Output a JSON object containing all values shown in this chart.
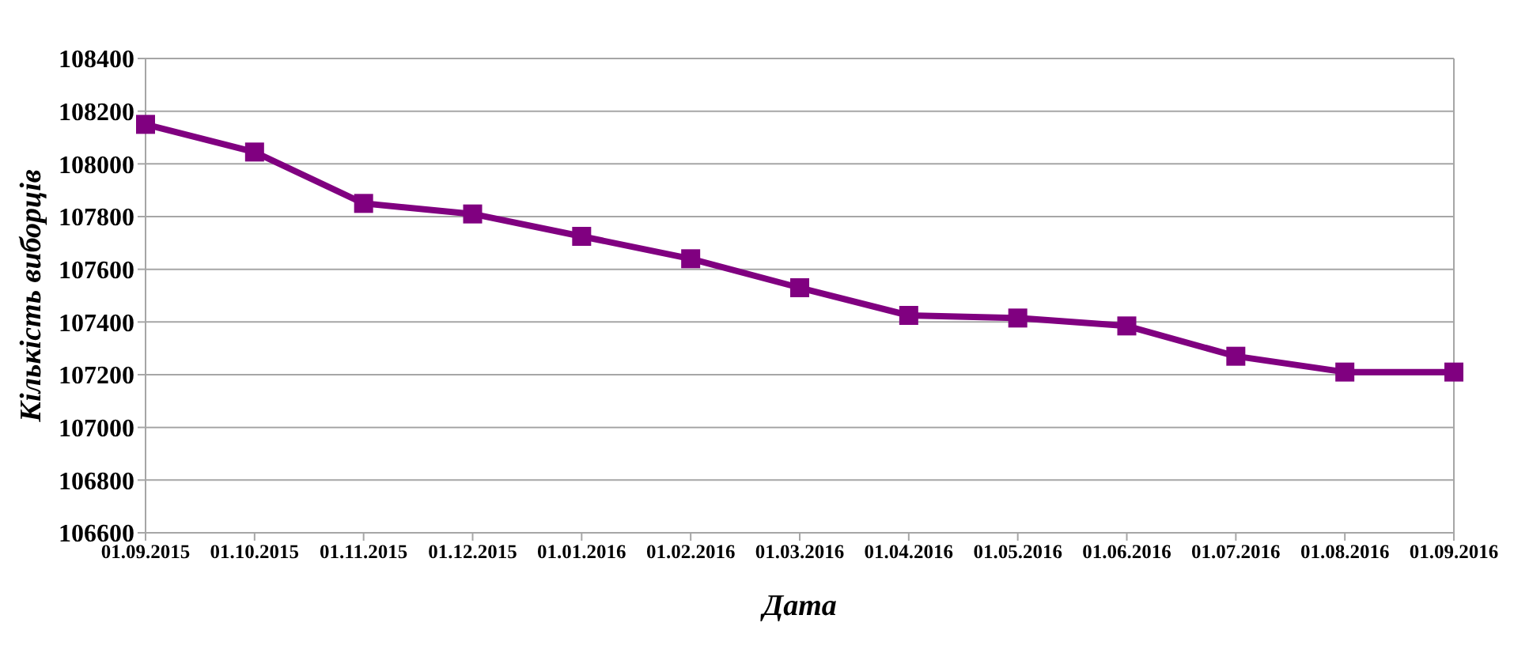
{
  "chart_data": {
    "type": "line",
    "xlabel": "Дата",
    "ylabel": "Кількість виборців",
    "categories": [
      "01.09.2015",
      "01.10.2015",
      "01.11.2015",
      "01.12.2015",
      "01.01.2016",
      "01.02.2016",
      "01.03.2016",
      "01.04.2016",
      "01.05.2016",
      "01.06.2016",
      "01.07.2016",
      "01.08.2016",
      "01.09.2016"
    ],
    "series": [
      {
        "color": "#800080",
        "values": [
          108150,
          108045,
          107850,
          107810,
          107725,
          107640,
          107530,
          107425,
          107415,
          107385,
          107270,
          107210,
          107210
        ]
      }
    ],
    "ylim": [
      106600,
      108400
    ],
    "yticks": [
      106600,
      106800,
      107000,
      107200,
      107400,
      107600,
      107800,
      108000,
      108200,
      108400
    ],
    "grid": "y",
    "marker": "square",
    "line_style": "solid"
  }
}
